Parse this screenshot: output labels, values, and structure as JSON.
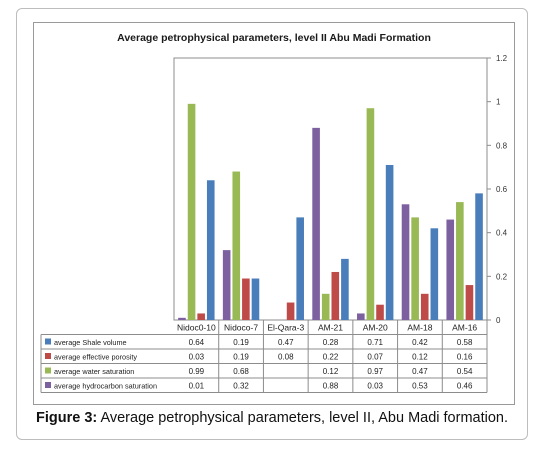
{
  "caption": {
    "label": "Figure 3:",
    "text": " Average petrophysical parameters, level II, Abu Madi formation."
  },
  "chart_data": {
    "type": "bar",
    "title": "Average petrophysical parameters, level II Abu Madi Formation",
    "categories": [
      "Nidoc0-10",
      "Nidoco-7",
      "El-Qara-3",
      "AM-21",
      "AM-20",
      "AM-18",
      "AM-16"
    ],
    "series": [
      {
        "name": "average Shale volume",
        "color": "#4a7ebb",
        "values": [
          0.64,
          0.19,
          0.47,
          0.28,
          0.71,
          0.42,
          0.58
        ],
        "labels": [
          "0.64",
          "0.19",
          "0.47",
          "0.28",
          "0.71",
          "0.42",
          "0.58"
        ]
      },
      {
        "name": "average effective porosity",
        "color": "#be4b48",
        "values": [
          0.03,
          0.19,
          0.08,
          0.22,
          0.07,
          0.12,
          0.16
        ],
        "labels": [
          "0.03",
          "0.19",
          "0.08",
          "0.22",
          "0.07",
          "0.12",
          "0.16"
        ]
      },
      {
        "name": "average water saturation",
        "color": "#98b954",
        "values": [
          0.99,
          0.68,
          null,
          0.12,
          0.97,
          0.47,
          0.54
        ],
        "labels": [
          "0.99",
          "0.68",
          "",
          "0.12",
          "0.97",
          "0.47",
          "0.54"
        ]
      },
      {
        "name": "average hydrocarbon saturation",
        "color": "#7d60a0",
        "values": [
          0.01,
          0.32,
          null,
          0.88,
          0.03,
          0.53,
          0.46
        ],
        "labels": [
          "0.01",
          "0.32",
          "",
          "0.88",
          "0.03",
          "0.53",
          "0.46"
        ]
      }
    ],
    "draw_order": [
      3,
      2,
      1,
      0
    ],
    "ylim": [
      0,
      1.2
    ],
    "yticks": [
      0,
      0.2,
      0.4,
      0.6,
      0.8,
      1,
      1.2
    ],
    "ytick_labels": [
      "0",
      "0.2",
      "0.4",
      "0.6",
      "0.8",
      "1",
      "1.2"
    ],
    "y_axis_side": "right",
    "grid": false,
    "legend": "data-table"
  }
}
